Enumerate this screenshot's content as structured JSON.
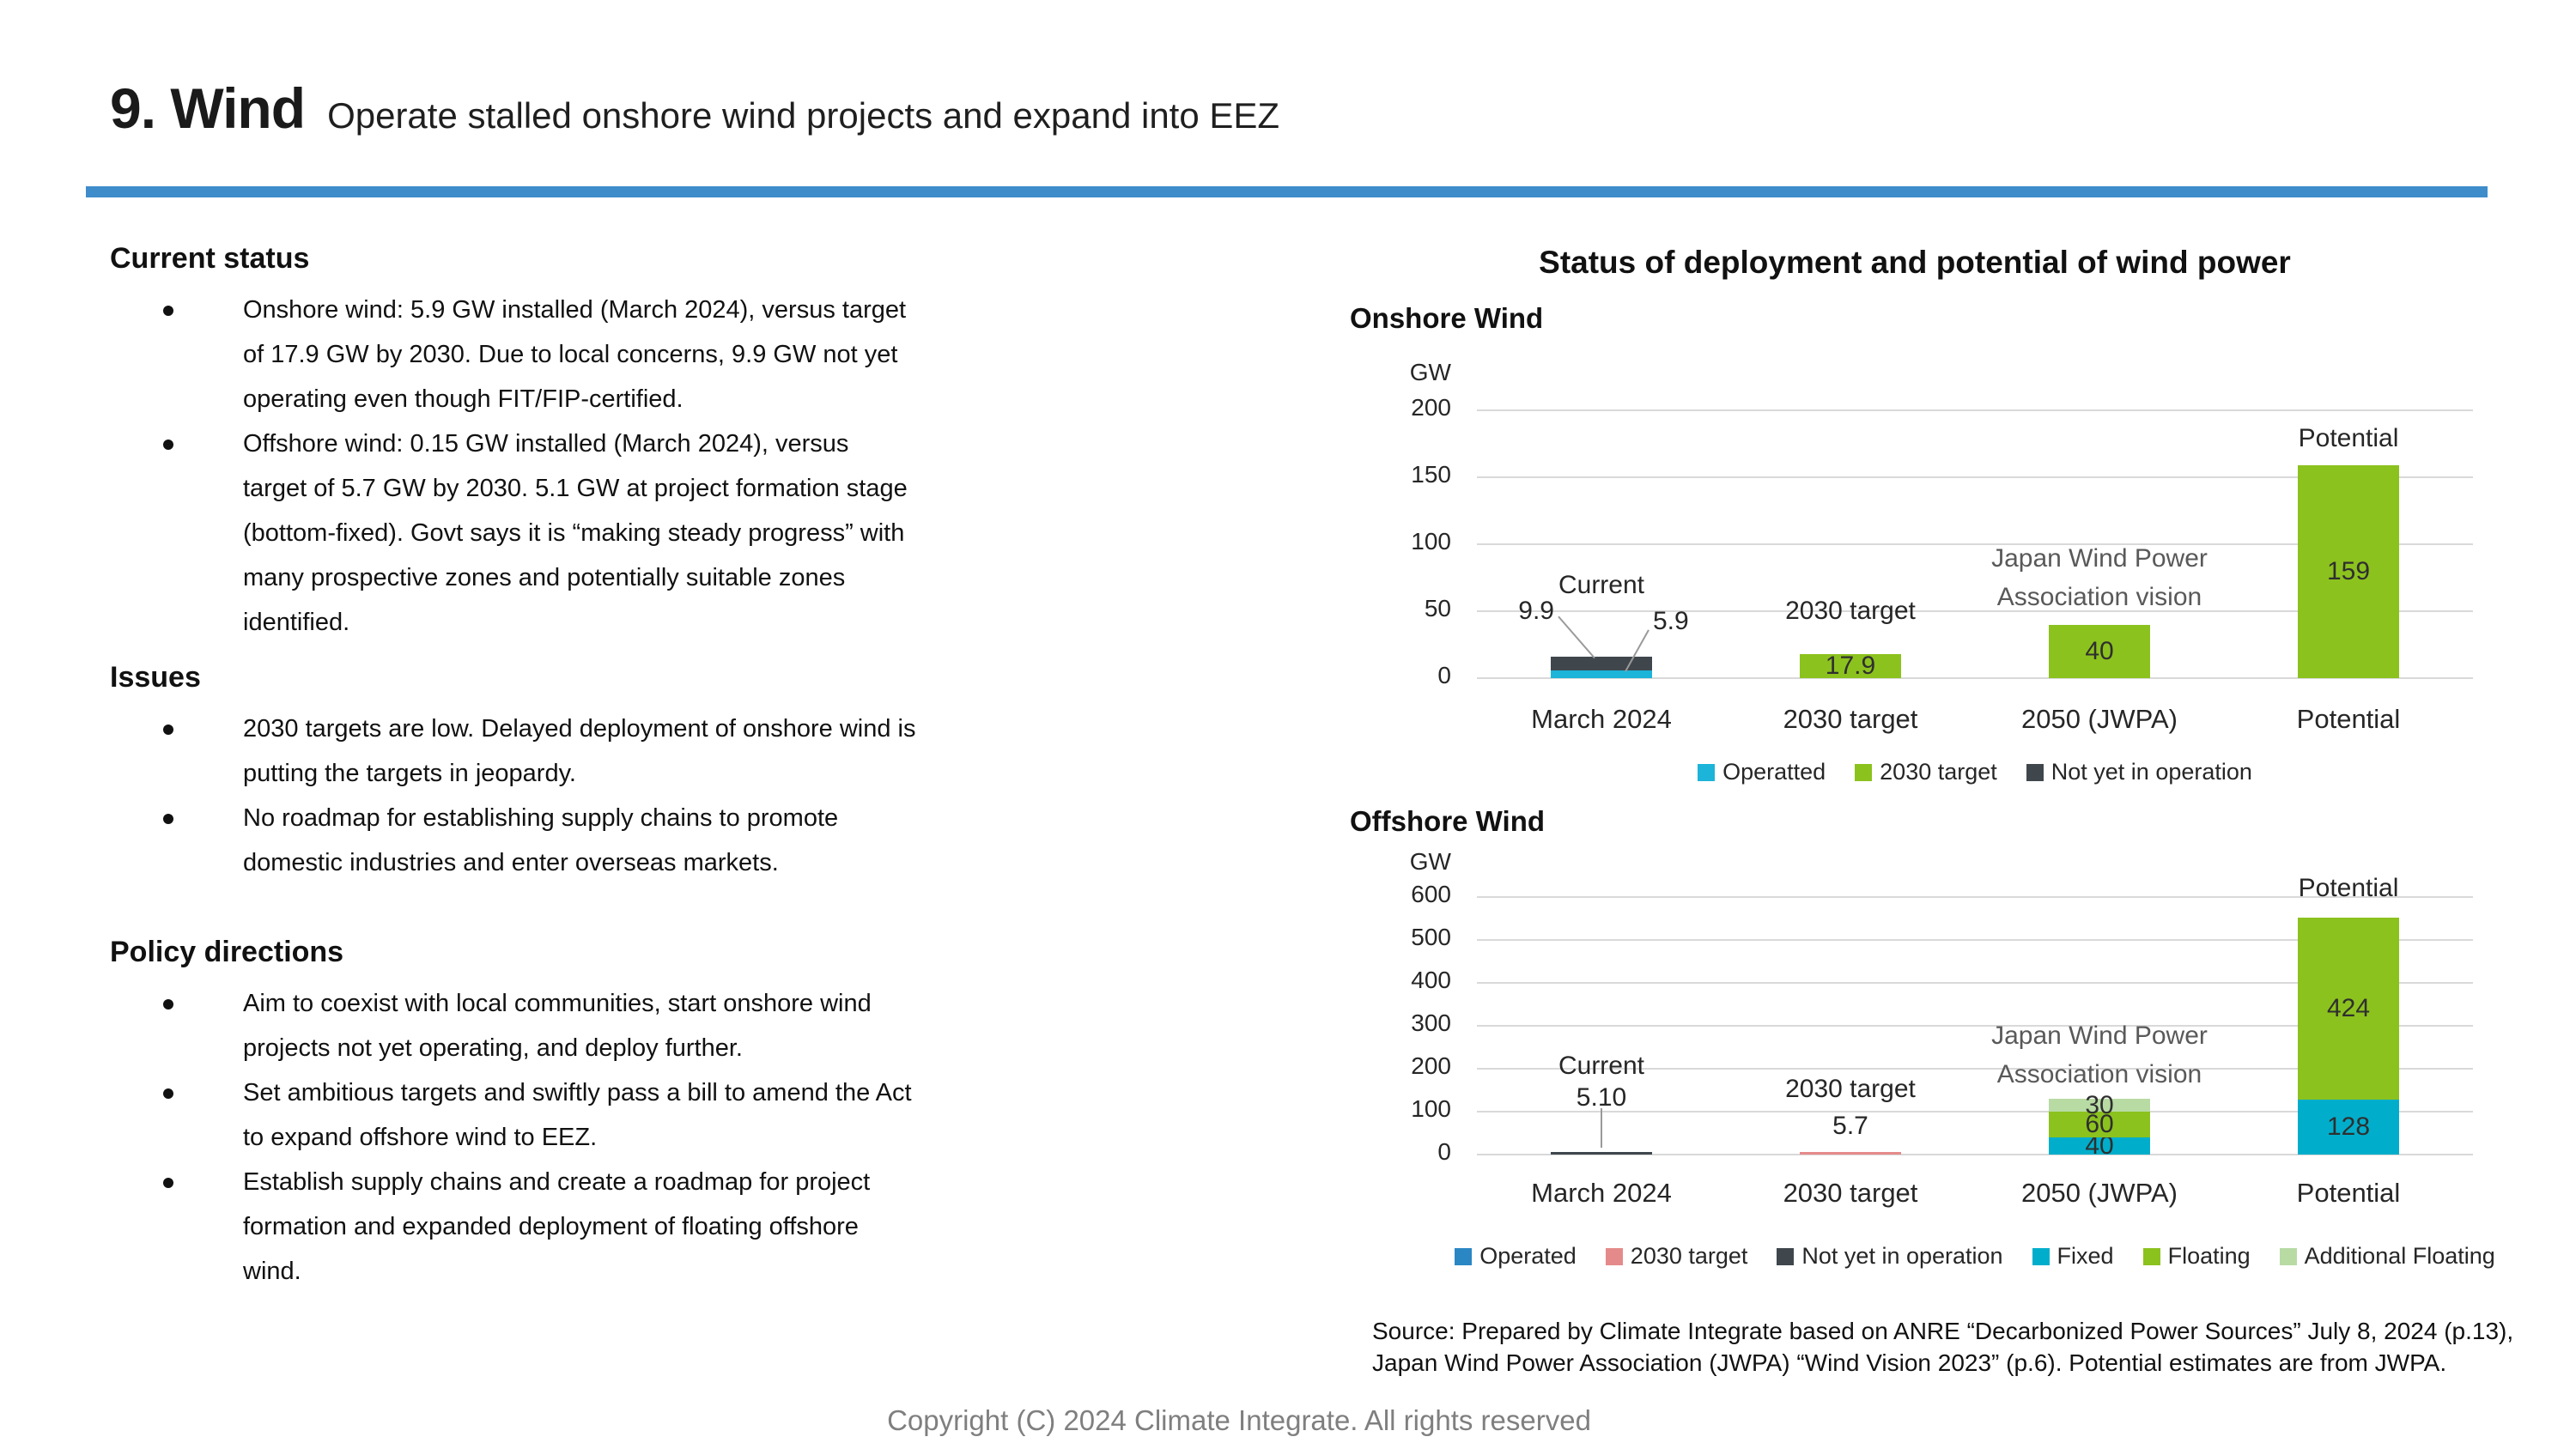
{
  "page": {
    "title": "9. Wind",
    "subtitle": "Operate stalled onshore wind projects and expand into EEZ",
    "copyright": "Copyright (C) 2024 Climate Integrate. All rights reserved"
  },
  "sections": [
    {
      "heading": "Current status",
      "bullets": [
        "Onshore wind: 5.9 GW installed (March 2024), versus target of 17.9 GW by 2030. Due to local concerns, 9.9 GW not yet operating even though FIT/FIP-certified.",
        "Offshore wind: 0.15 GW installed (March 2024), versus target of 5.7 GW by 2030. 5.1 GW at project formation stage (bottom-fixed). Govt says it is “making steady progress” with many prospective zones and potentially suitable zones identified."
      ]
    },
    {
      "heading": "Issues",
      "bullets": [
        "2030 targets are low. Delayed deployment of onshore wind is putting the targets in jeopardy.",
        "No roadmap for establishing supply chains to promote domestic industries and enter overseas markets."
      ]
    },
    {
      "heading": "Policy directions",
      "bullets": [
        "Aim to coexist with local communities, start onshore wind projects not yet operating, and deploy further.",
        "Set ambitious targets and swiftly pass a bill to amend the Act to expand offshore wind to EEZ.",
        "Establish supply chains and create a roadmap for project formation and expanded deployment of floating offshore wind."
      ]
    }
  ],
  "figure": {
    "title": "Status of deployment and potential of wind power",
    "source": "Source: Prepared by Climate Integrate based on ANRE “Decarbonized Power Sources” July 8, 2024 (p.13), Japan Wind Power Association (JWPA) “Wind Vision 2023” (p.6). Potential estimates are from JWPA."
  },
  "chart_data": [
    {
      "type": "bar",
      "title": "Onshore Wind",
      "ylabel": "GW",
      "ylim": [
        0,
        200
      ],
      "yticks": [
        0,
        50,
        100,
        150,
        200
      ],
      "grid": true,
      "legend_position": "bottom",
      "categories": [
        "March 2024",
        "2030 target",
        "2050 (JWPA)",
        "Potential"
      ],
      "series": [
        {
          "name": "Operatted",
          "color": "#1cb4d9",
          "values": [
            5.9,
            0,
            0,
            0
          ]
        },
        {
          "name": "2030 target",
          "color": "#8cc21e",
          "values": [
            0,
            17.9,
            40,
            159
          ]
        },
        {
          "name": "Not yet in operation",
          "color": "#3f474d",
          "values": [
            9.9,
            0,
            0,
            0
          ]
        }
      ],
      "segment_labels": [
        {
          "cat": 1,
          "series": "2030 target",
          "text": "17.9"
        },
        {
          "cat": 2,
          "series": "2030 target",
          "text": "40"
        },
        {
          "cat": 3,
          "series": "2030 target",
          "text": "159"
        }
      ],
      "annotations": [
        {
          "text": "Current",
          "cat": 0,
          "gw": 80,
          "color": "#262626"
        },
        {
          "text": "2030 target",
          "cat": 1,
          "gw": 61,
          "color": "#262626"
        },
        {
          "text": "Japan Wind Power",
          "cat": 2,
          "gw": 100,
          "color": "#595959"
        },
        {
          "text": "Association vision",
          "cat": 2,
          "gw": 71,
          "color": "#595959"
        },
        {
          "text": "Potential",
          "cat": 3,
          "gw": 190,
          "color": "#262626"
        }
      ],
      "callouts": [
        {
          "text": "9.9",
          "cat": 0,
          "align": "right",
          "label_dx": -55,
          "label_gw": 61,
          "line": [
            [
              -50,
              46
            ],
            [
              -8,
              15
            ]
          ]
        },
        {
          "text": "5.9",
          "cat": 0,
          "align": "left",
          "label_dx": 60,
          "label_gw": 53,
          "line": [
            [
              55,
              36
            ],
            [
              28,
              5
            ]
          ]
        }
      ],
      "legend": [
        "Operatted",
        "2030 target",
        "Not yet in operation"
      ]
    },
    {
      "type": "bar",
      "title": "Offshore Wind",
      "ylabel": "GW",
      "ylim": [
        0,
        600
      ],
      "yticks": [
        0,
        100,
        200,
        300,
        400,
        500,
        600
      ],
      "grid": true,
      "legend_position": "bottom",
      "categories": [
        "March 2024",
        "2030 target",
        "2050 (JWPA)",
        "Potential"
      ],
      "series": [
        {
          "name": "Operated",
          "color": "#2b87c4",
          "values": [
            0,
            0,
            0,
            0
          ]
        },
        {
          "name": "2030 target",
          "color": "#e58a8a",
          "values": [
            0,
            5.7,
            0,
            0
          ]
        },
        {
          "name": "Not yet in operation",
          "color": "#3f474d",
          "values": [
            5.1,
            0,
            0,
            0
          ]
        },
        {
          "name": "Fixed",
          "color": "#00aecb",
          "values": [
            0,
            0,
            40,
            128
          ]
        },
        {
          "name": "Floating",
          "color": "#8cc21e",
          "values": [
            0,
            0,
            60,
            424
          ]
        },
        {
          "name": "Additional Floating",
          "color": "#b8dba4",
          "values": [
            0,
            0,
            30,
            0
          ]
        }
      ],
      "segment_labels": [
        {
          "cat": 2,
          "series": "Fixed",
          "text": "40"
        },
        {
          "cat": 2,
          "series": "Floating",
          "text": "60"
        },
        {
          "cat": 2,
          "series": "Additional Floating",
          "text": "30"
        },
        {
          "cat": 3,
          "series": "Fixed",
          "text": "128"
        },
        {
          "cat": 3,
          "series": "Floating",
          "text": "424"
        }
      ],
      "annotations": [
        {
          "text": "Current",
          "cat": 0,
          "gw": 240,
          "color": "#262626"
        },
        {
          "text": "2030 target",
          "cat": 1,
          "gw": 186,
          "color": "#262626"
        },
        {
          "text": "5.7",
          "cat": 1,
          "gw": 100,
          "color": "#262626"
        },
        {
          "text": "Japan Wind Power",
          "cat": 2,
          "gw": 310,
          "color": "#595959"
        },
        {
          "text": "Association vision",
          "cat": 2,
          "gw": 220,
          "color": "#595959"
        },
        {
          "text": "Potential",
          "cat": 3,
          "gw": 654,
          "color": "#262626"
        }
      ],
      "callouts": [
        {
          "text": "5.10",
          "cat": 0,
          "align": "center",
          "label_dx": 0,
          "label_gw": 166,
          "line": [
            [
              0,
              108
            ],
            [
              0,
              16
            ]
          ]
        }
      ],
      "legend": [
        "Operated",
        "2030 target",
        "Not yet in operation",
        "Fixed",
        "Floating",
        "Additional Floating"
      ]
    }
  ]
}
